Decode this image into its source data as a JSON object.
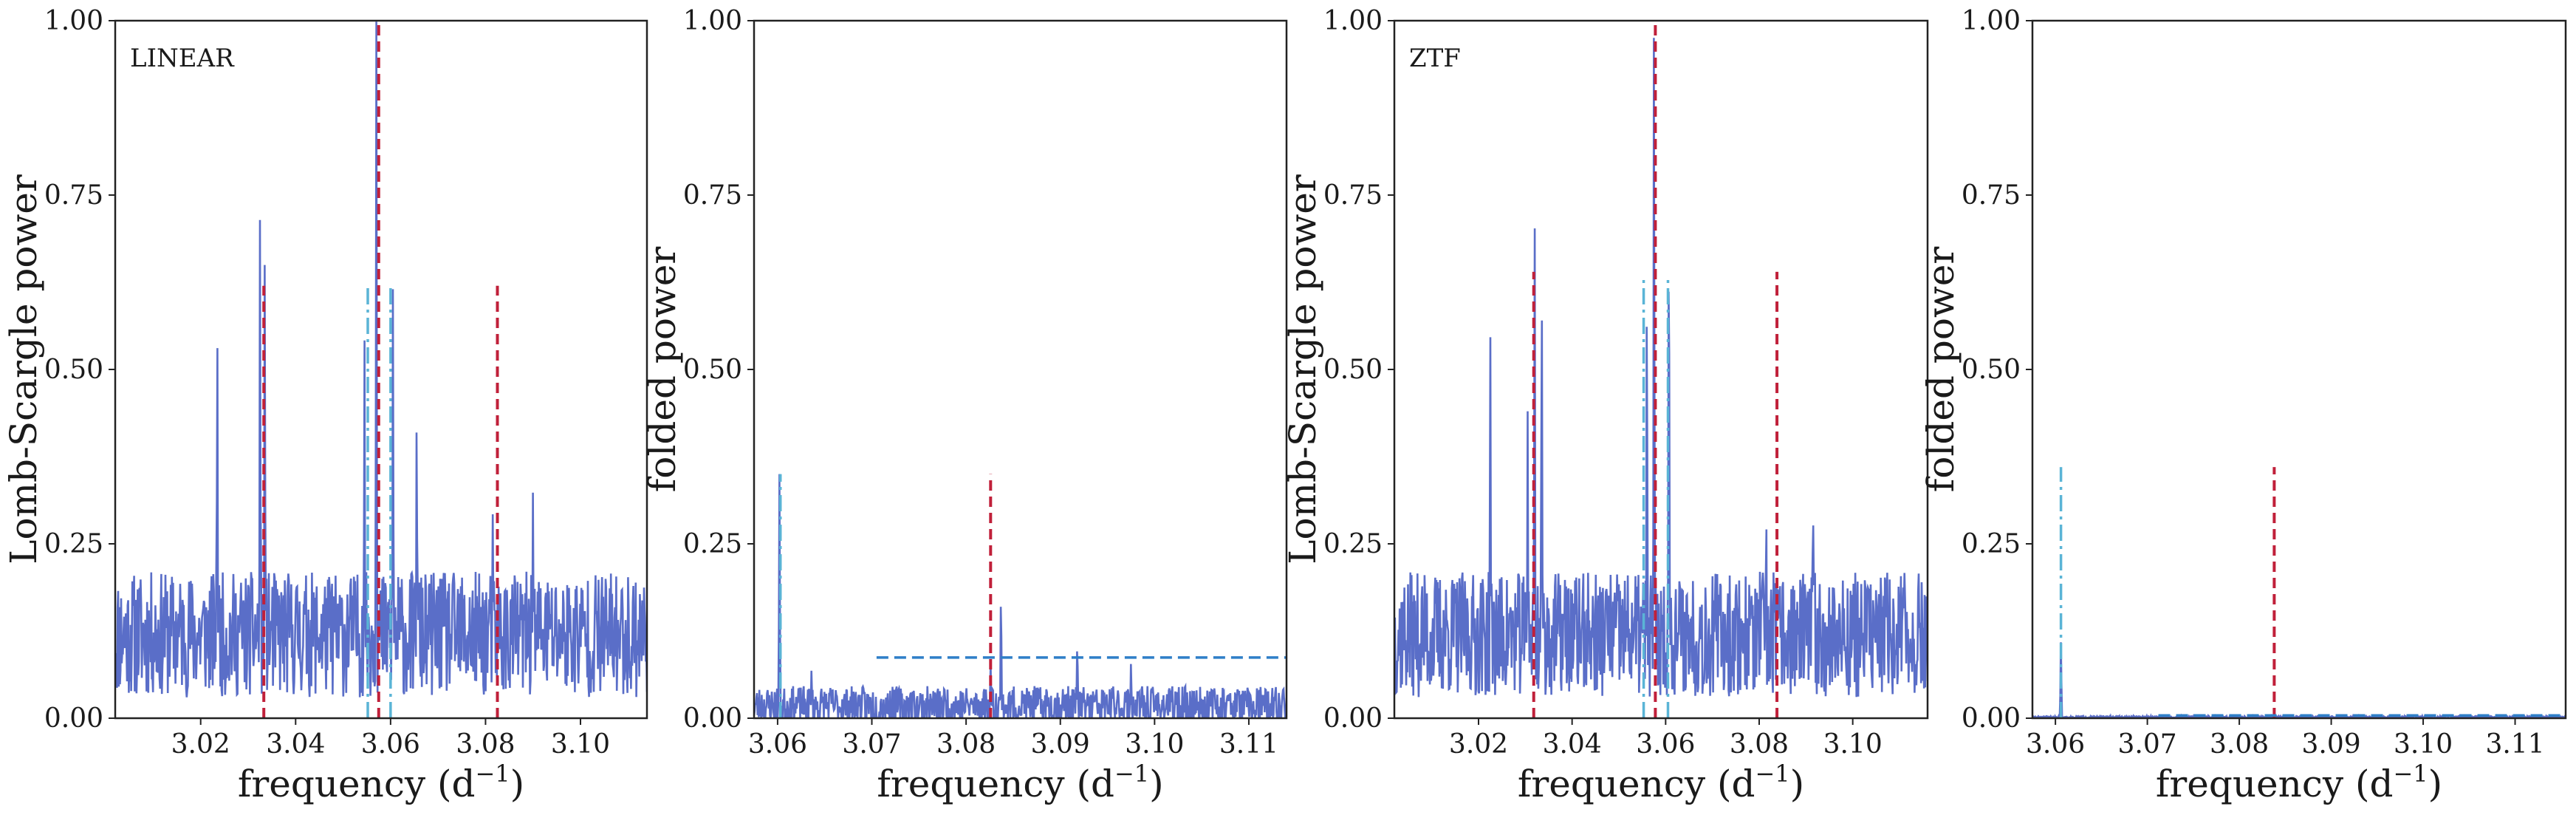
{
  "chart_data": [
    {
      "type": "line",
      "panel": "top-left",
      "label": "LINEAR",
      "xlabel": "frequency (d",
      "xlabel_sup": "−1",
      "xlabel_close": ")",
      "ylabel": "Lomb-Scargle power",
      "xlim": [
        3.002,
        3.114
      ],
      "ylim": [
        0,
        1
      ],
      "xticks": [
        3.02,
        3.04,
        3.06,
        3.08,
        3.1
      ],
      "xtick_labels": [
        "3.02",
        "3.04",
        "3.06",
        "3.08",
        "3.10"
      ],
      "yticks": [
        0,
        0.25,
        0.5,
        0.75,
        1.0
      ],
      "ytick_labels": [
        "0.00",
        "0.25",
        "0.50",
        "0.75",
        "1.00"
      ],
      "spectrum": {
        "color": "#5a6ec8",
        "seed": 11,
        "baseline": 0.12,
        "noise": 0.09,
        "peaks": [
          {
            "x": 3.0235,
            "y": 0.56
          },
          {
            "x": 3.0325,
            "y": 0.72
          },
          {
            "x": 3.0335,
            "y": 0.66
          },
          {
            "x": 3.0545,
            "y": 0.55
          },
          {
            "x": 3.057,
            "y": 1.0
          },
          {
            "x": 3.0605,
            "y": 0.62
          },
          {
            "x": 3.0655,
            "y": 0.44
          },
          {
            "x": 3.0815,
            "y": 0.3
          },
          {
            "x": 3.09,
            "y": 0.33
          }
        ]
      },
      "vlines": [
        {
          "x": 3.0333,
          "y": 0.62,
          "color": "#c0203a",
          "style": "dashed"
        },
        {
          "x": 3.0575,
          "y": 1.0,
          "color": "#c0203a",
          "style": "dashed"
        },
        {
          "x": 3.0825,
          "y": 0.62,
          "color": "#c0203a",
          "style": "dashed"
        },
        {
          "x": 3.0552,
          "y": 0.62,
          "color": "#5ab4d6",
          "style": "dashdot"
        },
        {
          "x": 3.06,
          "y": 0.62,
          "color": "#5ab4d6",
          "style": "dashdot"
        }
      ],
      "hline": null
    },
    {
      "type": "line",
      "panel": "top-left",
      "label": "",
      "xlabel": "frequency (d",
      "xlabel_sup": "−1",
      "xlabel_close": ")",
      "ylabel": "folded power",
      "xlim": [
        3.0575,
        3.114
      ],
      "ylim": [
        0,
        1
      ],
      "xticks": [
        3.06,
        3.07,
        3.08,
        3.09,
        3.1,
        3.11
      ],
      "xtick_labels": [
        "3.06",
        "3.07",
        "3.08",
        "3.09",
        "3.10",
        "3.11"
      ],
      "yticks": [
        0,
        0.25,
        0.5,
        0.75,
        1.0
      ],
      "ytick_labels": [
        "0.00",
        "0.25",
        "0.50",
        "0.75",
        "1.00"
      ],
      "spectrum": {
        "color": "#5a6ec8",
        "seed": 23,
        "baseline": 0.018,
        "noise": 0.028,
        "peaks": [
          {
            "x": 3.0602,
            "y": 0.35
          },
          {
            "x": 3.0636,
            "y": 0.07
          },
          {
            "x": 3.0826,
            "y": 0.08
          },
          {
            "x": 3.0837,
            "y": 0.18
          },
          {
            "x": 3.0918,
            "y": 0.11
          },
          {
            "x": 3.0975,
            "y": 0.08
          }
        ]
      },
      "vlines": [
        {
          "x": 3.0603,
          "y": 0.35,
          "color": "#5ab4d6",
          "style": "dashdot"
        },
        {
          "x": 3.0826,
          "y": 0.35,
          "color": "#c0203a",
          "style": "dashed"
        }
      ],
      "hline": {
        "x0": 3.0705,
        "x1": 3.114,
        "y": 0.087,
        "color": "#2f7fc8",
        "style": "dashed"
      }
    },
    {
      "type": "line",
      "panel": "top-left",
      "label": "ZTF",
      "xlabel": "frequency (d",
      "xlabel_sup": "−1",
      "xlabel_close": ")",
      "ylabel": "Lomb-Scargle power",
      "xlim": [
        3.002,
        3.116
      ],
      "ylim": [
        0,
        1
      ],
      "xticks": [
        3.02,
        3.04,
        3.06,
        3.08,
        3.1
      ],
      "xtick_labels": [
        "3.02",
        "3.04",
        "3.06",
        "3.08",
        "3.10"
      ],
      "yticks": [
        0,
        0.25,
        0.5,
        0.75,
        1.0
      ],
      "ytick_labels": [
        "0.00",
        "0.25",
        "0.50",
        "0.75",
        "1.00"
      ],
      "spectrum": {
        "color": "#5a6ec8",
        "seed": 37,
        "baseline": 0.12,
        "noise": 0.09,
        "peaks": [
          {
            "x": 3.0225,
            "y": 0.56
          },
          {
            "x": 3.0305,
            "y": 0.44
          },
          {
            "x": 3.032,
            "y": 0.72
          },
          {
            "x": 3.0335,
            "y": 0.63
          },
          {
            "x": 3.056,
            "y": 0.62
          },
          {
            "x": 3.0575,
            "y": 1.0
          },
          {
            "x": 3.0607,
            "y": 0.73
          },
          {
            "x": 3.0815,
            "y": 0.31
          },
          {
            "x": 3.0915,
            "y": 0.33
          }
        ]
      },
      "vlines": [
        {
          "x": 3.0318,
          "y": 0.64,
          "color": "#c0203a",
          "style": "dashed"
        },
        {
          "x": 3.0578,
          "y": 1.0,
          "color": "#c0203a",
          "style": "dashed"
        },
        {
          "x": 3.0838,
          "y": 0.64,
          "color": "#c0203a",
          "style": "dashed"
        },
        {
          "x": 3.0553,
          "y": 0.63,
          "color": "#5ab4d6",
          "style": "dashdot"
        },
        {
          "x": 3.0605,
          "y": 0.63,
          "color": "#5ab4d6",
          "style": "dashdot"
        }
      ],
      "hline": null
    },
    {
      "type": "line",
      "panel": "top-left",
      "label": "",
      "xlabel": "frequency (d",
      "xlabel_sup": "−1",
      "xlabel_close": ")",
      "ylabel": "folded power",
      "xlim": [
        3.0575,
        3.1155
      ],
      "ylim": [
        0,
        1
      ],
      "xticks": [
        3.06,
        3.07,
        3.08,
        3.09,
        3.1,
        3.11
      ],
      "xtick_labels": [
        "3.06",
        "3.07",
        "3.08",
        "3.09",
        "3.10",
        "3.11"
      ],
      "yticks": [
        0,
        0.25,
        0.5,
        0.75,
        1.0
      ],
      "ytick_labels": [
        "0.00",
        "0.25",
        "0.50",
        "0.75",
        "1.00"
      ],
      "spectrum": {
        "color": "#5a6ec8",
        "seed": 51,
        "baseline": 0.0015,
        "noise": 0.0015,
        "peaks": [
          {
            "x": 3.0606,
            "y": 0.11
          }
        ]
      },
      "vlines": [
        {
          "x": 3.0606,
          "y": 0.36,
          "color": "#5ab4d6",
          "style": "dashdot"
        },
        {
          "x": 3.0838,
          "y": 0.36,
          "color": "#c0203a",
          "style": "dashed"
        }
      ],
      "hline": {
        "x0": 3.0712,
        "x1": 3.1155,
        "y": 0.004,
        "color": "#2f7fc8",
        "style": "dashed"
      }
    }
  ]
}
